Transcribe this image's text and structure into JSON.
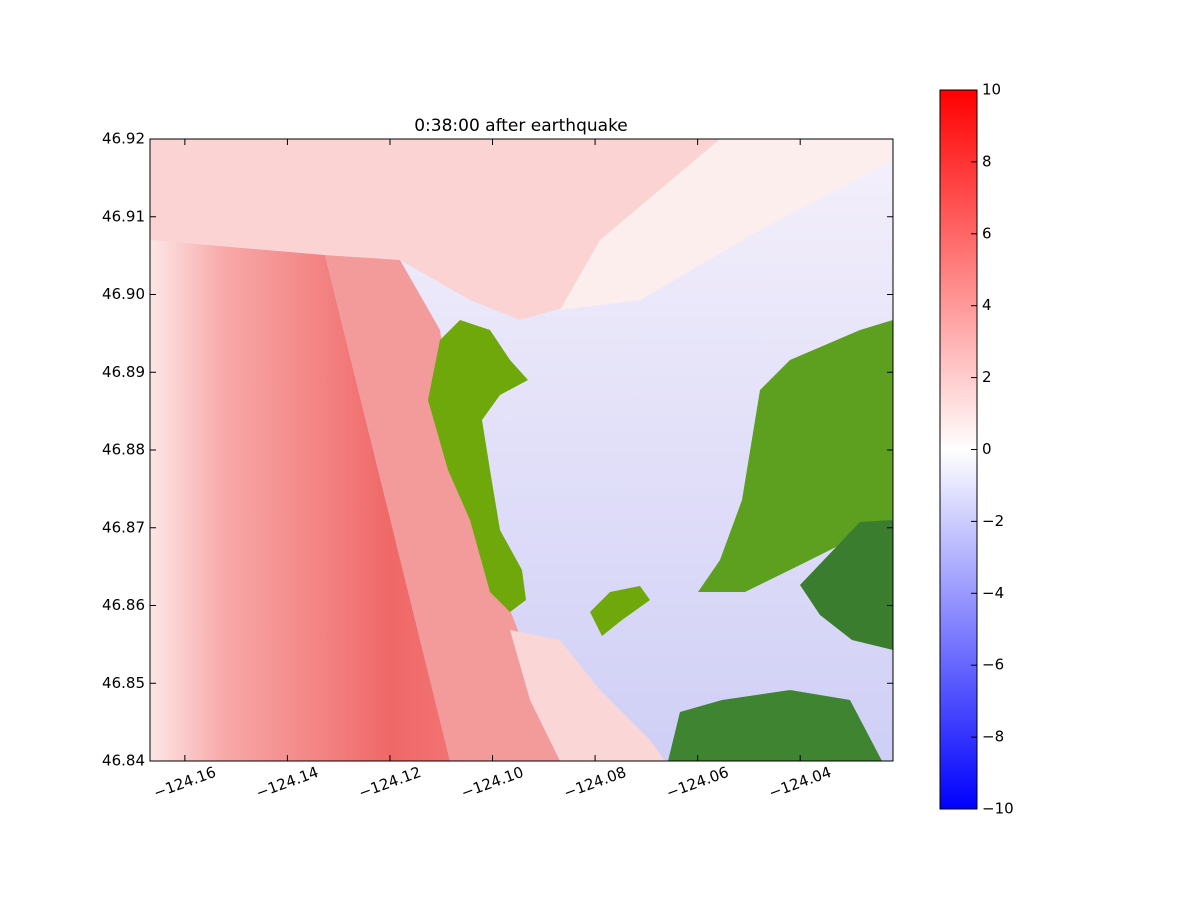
{
  "chart_data": {
    "type": "heatmap",
    "title": "0:38:00 after earthquake",
    "xlim": [
      -124.1668,
      -124.0219
    ],
    "xticks": [
      {
        "value": -124.16,
        "label": "−124.16"
      },
      {
        "value": -124.14,
        "label": "−124.14"
      },
      {
        "value": -124.12,
        "label": "−124.12"
      },
      {
        "value": -124.1,
        "label": "−124.10"
      },
      {
        "value": -124.08,
        "label": "−124.08"
      },
      {
        "value": -124.06,
        "label": "−124.06"
      },
      {
        "value": -124.04,
        "label": "−124.04"
      }
    ],
    "ylim": [
      46.84,
      46.92
    ],
    "yticks": [
      46.84,
      46.85,
      46.86,
      46.87,
      46.88,
      46.89,
      {
        "value": 46.9,
        "label": "46.90"
      },
      46.91,
      46.92
    ],
    "colorbar": {
      "lim": [
        -10,
        10
      ],
      "colors": [
        "#0000ff",
        "#ffffff",
        "#ff0000"
      ],
      "ticks": [
        {
          "value": -10,
          "label": "−10"
        },
        {
          "value": -8,
          "label": "−8"
        },
        {
          "value": -6,
          "label": "−6"
        },
        {
          "value": -4,
          "label": "−4"
        },
        {
          "value": -2,
          "label": "−2"
        },
        0,
        2,
        4,
        6,
        8,
        10
      ]
    }
  }
}
